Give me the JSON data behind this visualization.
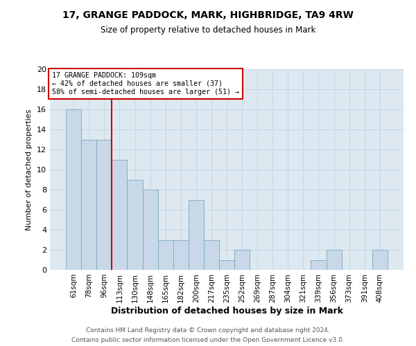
{
  "title_line1": "17, GRANGE PADDOCK, MARK, HIGHBRIDGE, TA9 4RW",
  "title_line2": "Size of property relative to detached houses in Mark",
  "xlabel": "Distribution of detached houses by size in Mark",
  "ylabel": "Number of detached properties",
  "bar_labels": [
    "61sqm",
    "78sqm",
    "96sqm",
    "113sqm",
    "130sqm",
    "148sqm",
    "165sqm",
    "182sqm",
    "200sqm",
    "217sqm",
    "235sqm",
    "252sqm",
    "269sqm",
    "287sqm",
    "304sqm",
    "321sqm",
    "339sqm",
    "356sqm",
    "373sqm",
    "391sqm",
    "408sqm"
  ],
  "bar_values": [
    16,
    13,
    13,
    11,
    9,
    8,
    3,
    3,
    7,
    3,
    1,
    2,
    0,
    0,
    0,
    0,
    1,
    2,
    0,
    0,
    2
  ],
  "bar_color": "#c8d8e8",
  "bar_edge_color": "#7aaabb",
  "property_line_index": 3,
  "annotation_title": "17 GRANGE PADDOCK: 109sqm",
  "annotation_line1": "← 42% of detached houses are smaller (37)",
  "annotation_line2": "58% of semi-detached houses are larger (51) →",
  "annotation_box_color": "#ffffff",
  "annotation_box_edge_color": "#cc0000",
  "red_line_color": "#cc0000",
  "ylim": [
    0,
    20
  ],
  "yticks": [
    0,
    2,
    4,
    6,
    8,
    10,
    12,
    14,
    16,
    18,
    20
  ],
  "grid_color": "#c8d8e8",
  "plot_bg_color": "#dde8f0",
  "fig_bg_color": "#ffffff",
  "footer_line1": "Contains HM Land Registry data © Crown copyright and database right 2024.",
  "footer_line2": "Contains public sector information licensed under the Open Government Licence v3.0."
}
